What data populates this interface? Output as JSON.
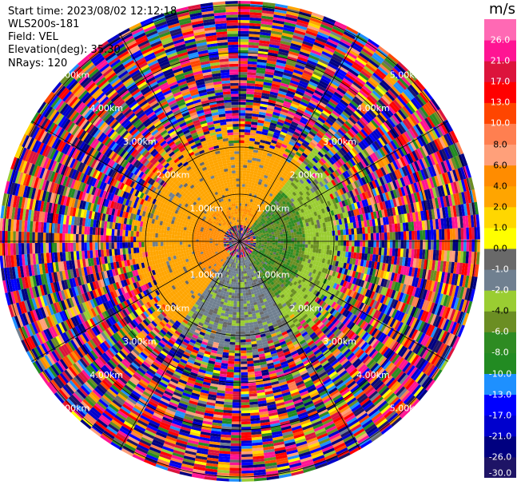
{
  "header": {
    "start_time": "Start time: 2023/08/02 12:12:18",
    "instrument": "WLS200s-181",
    "field": "Field: VEL",
    "elevation": "Elevation(deg): 35.30",
    "nrays": "NRays: 120"
  },
  "colorbar": {
    "unit": "m/s",
    "bounds": [
      -30.0,
      -26.0,
      -21.0,
      -17.0,
      -13.0,
      -10.0,
      -8.0,
      -6.0,
      -4.0,
      -2.0,
      -1.0,
      0.0,
      1.0,
      2.0,
      4.0,
      6.0,
      8.0,
      10.0,
      13.0,
      17.0,
      21.0,
      26.0
    ],
    "tick_labels": [
      "-30.0",
      "-26.0",
      "-21.0",
      "-17.0",
      "-13.0",
      "-10.0",
      "-8.0",
      "-6.0",
      "-4.0",
      "-2.0",
      "-1.0",
      "0.0",
      "1.0",
      "2.0",
      "4.0",
      "6.0",
      "8.0",
      "10.0",
      "13.0",
      "17.0",
      "21.0",
      "26.0"
    ],
    "colors": [
      "#1e1466",
      "#000080",
      "#0000cd",
      "#0000ff",
      "#1e90ff",
      "#228b22",
      "#2e8b22",
      "#6b8e23",
      "#9acd32",
      "#708090",
      "#696969",
      "#ffff00",
      "#ffd700",
      "#ffa500",
      "#ff8c00",
      "#ffa07a",
      "#ff7f50",
      "#ff4500",
      "#ff0000",
      "#dc143c",
      "#ff1493",
      "#ff69b4"
    ]
  },
  "chart_data": {
    "type": "ppi",
    "field": "VEL",
    "units": "m/s",
    "nrays": 120,
    "elevation_deg": 35.3,
    "rings_km": [
      1.0,
      2.0,
      3.0,
      4.0,
      5.0
    ],
    "ring_labels": [
      "1.00km",
      "2.00km",
      "3.00km",
      "4.00km",
      "5.00km"
    ],
    "max_range_km": 5.1,
    "spokes_deg": [
      0,
      30,
      60,
      90,
      120,
      150,
      180,
      210,
      240,
      270,
      300,
      330
    ],
    "velocity_regions": [
      {
        "region": "west and northwest, inner 2 km",
        "value_range": [
          2.0,
          6.0
        ],
        "colors": "yellow / orange"
      },
      {
        "region": "east, inner 2 km",
        "value_range": [
          -8.0,
          -2.0
        ],
        "colors": "green"
      },
      {
        "region": "south, inner 2 km",
        "value_range": [
          -4.0,
          -1.0
        ],
        "colors": "yellow-green / grey"
      },
      {
        "region": "beyond 2.5 km",
        "value_range": [
          -30.0,
          26.0
        ],
        "colors": "noise, all colors"
      }
    ]
  }
}
